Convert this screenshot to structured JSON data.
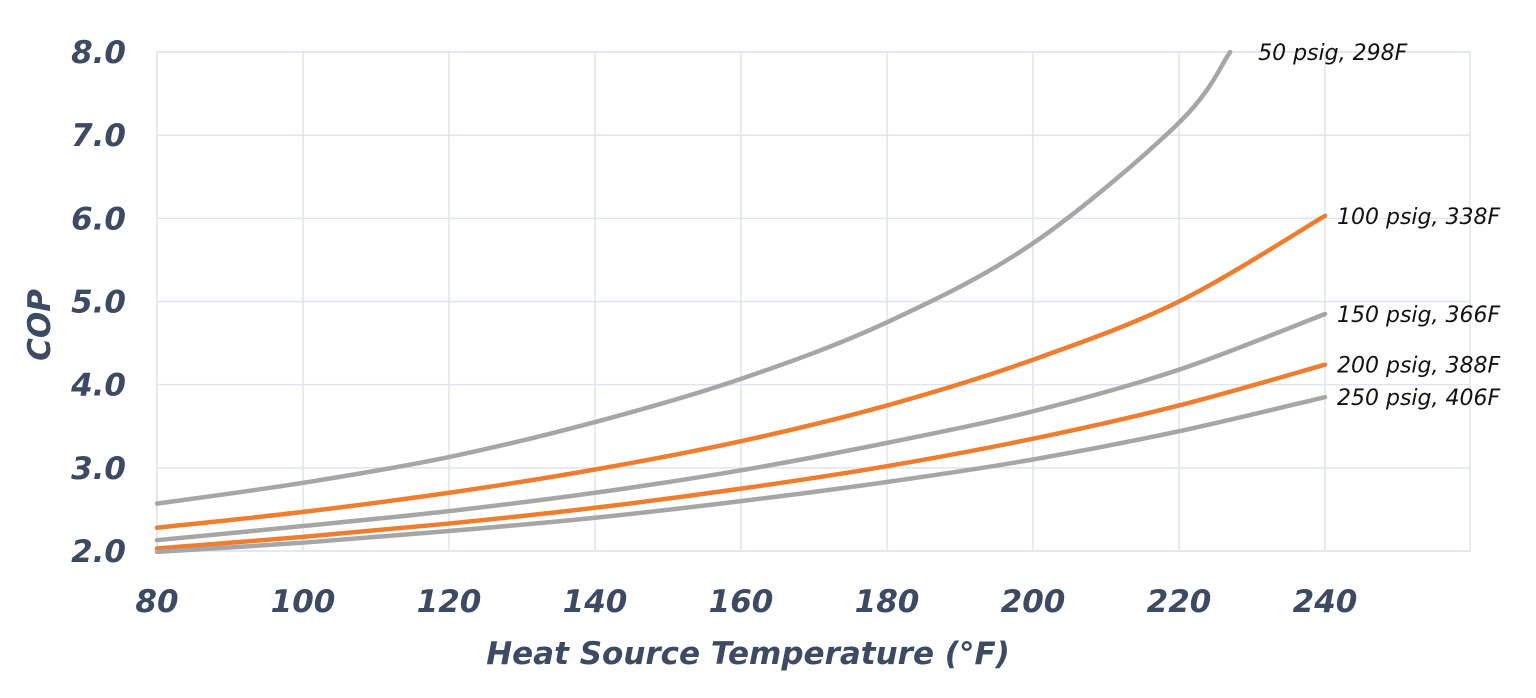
{
  "chart_data": {
    "type": "line",
    "title": "",
    "xlabel": "Heat Source Temperature (°F)",
    "ylabel": "COP",
    "xlim": [
      80,
      260
    ],
    "ylim": [
      2.0,
      8.0
    ],
    "xticks": [
      "80",
      "100",
      "120",
      "140",
      "160",
      "180",
      "200",
      "220",
      "240"
    ],
    "yticks": [
      "2.0",
      "3.0",
      "4.0",
      "5.0",
      "6.0",
      "7.0",
      "8.0"
    ],
    "grid": true,
    "legend": "inline labels at line ends",
    "series": [
      {
        "name": "50 psig, 298F",
        "color": "#a6a6a6",
        "x": [
          80,
          100,
          120,
          140,
          160,
          180,
          200,
          220,
          227
        ],
        "y": [
          2.57,
          2.82,
          3.13,
          3.55,
          4.07,
          4.75,
          5.7,
          7.15,
          8.0
        ]
      },
      {
        "name": "100 psig, 338F",
        "color": "#f07c2e",
        "x": [
          80,
          100,
          120,
          140,
          160,
          180,
          200,
          220,
          240
        ],
        "y": [
          2.28,
          2.47,
          2.7,
          2.98,
          3.32,
          3.75,
          4.3,
          5.0,
          6.03
        ]
      },
      {
        "name": "150 psig, 366F",
        "color": "#a6a6a6",
        "x": [
          80,
          100,
          120,
          140,
          160,
          180,
          200,
          220,
          240
        ],
        "y": [
          2.13,
          2.3,
          2.48,
          2.7,
          2.97,
          3.3,
          3.68,
          4.18,
          4.85
        ]
      },
      {
        "name": "200 psig, 388F",
        "color": "#f07c2e",
        "x": [
          80,
          100,
          120,
          140,
          160,
          180,
          200,
          220,
          240
        ],
        "y": [
          2.03,
          2.17,
          2.33,
          2.52,
          2.75,
          3.02,
          3.35,
          3.75,
          4.24
        ]
      },
      {
        "name": "250 psig, 406F",
        "color": "#a6a6a6",
        "x": [
          80,
          100,
          120,
          140,
          160,
          180,
          200,
          220,
          240
        ],
        "y": [
          1.99,
          2.1,
          2.24,
          2.4,
          2.6,
          2.83,
          3.1,
          3.44,
          3.85
        ]
      }
    ]
  }
}
